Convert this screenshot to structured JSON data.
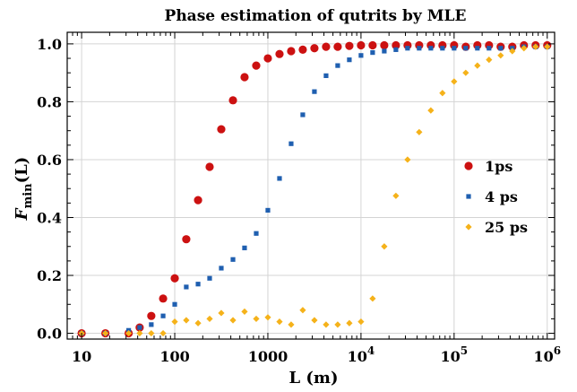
{
  "chart_data": {
    "type": "scatter",
    "title": "Phase estimation of qutrits by MLE",
    "xlabel": "L (m)",
    "ylabel_main": "F",
    "ylabel_sub": "min",
    "ylabel_tail": "(L)",
    "x_scale": "log",
    "xlim": [
      7,
      1200000
    ],
    "ylim": [
      -0.02,
      1.04
    ],
    "grid": true,
    "legend_position": "center-right",
    "x_ticks": [
      {
        "value": 10,
        "base": "10",
        "exp": ""
      },
      {
        "value": 100,
        "base": "100",
        "exp": ""
      },
      {
        "value": 1000,
        "base": "1000",
        "exp": ""
      },
      {
        "value": 10000,
        "base": "10",
        "exp": "4"
      },
      {
        "value": 100000,
        "base": "10",
        "exp": "5"
      },
      {
        "value": 1000000,
        "base": "10",
        "exp": "6"
      }
    ],
    "y_ticks": [
      {
        "value": 0.0,
        "label": "0.0"
      },
      {
        "value": 0.2,
        "label": "0.2"
      },
      {
        "value": 0.4,
        "label": "0.4"
      },
      {
        "value": 0.6,
        "label": "0.6"
      },
      {
        "value": 0.8,
        "label": "0.8"
      },
      {
        "value": 1.0,
        "label": "1.0"
      }
    ],
    "series": [
      {
        "name": "1ps",
        "color": "#cc1111",
        "marker": "circle",
        "x": [
          10,
          18,
          32,
          42,
          56,
          75,
          100,
          133,
          178,
          237,
          316,
          422,
          562,
          750,
          1000,
          1334,
          1778,
          2371,
          3162,
          4217,
          5623,
          7499,
          10000,
          13335,
          17783,
          23714,
          31623,
          42170,
          56234,
          74989,
          100000,
          133352,
          177828,
          237137,
          316228,
          421697,
          562341,
          749894,
          1000000
        ],
        "y": [
          0.0,
          0.0,
          0.0,
          0.02,
          0.06,
          0.12,
          0.19,
          0.325,
          0.46,
          0.575,
          0.705,
          0.805,
          0.885,
          0.925,
          0.95,
          0.965,
          0.975,
          0.98,
          0.985,
          0.99,
          0.99,
          0.993,
          0.995,
          0.995,
          0.995,
          0.995,
          0.995,
          0.995,
          0.995,
          0.995,
          0.995,
          0.99,
          0.995,
          0.995,
          0.99,
          0.99,
          0.995,
          0.995,
          0.995
        ]
      },
      {
        "name": "4 ps",
        "color": "#1f5fb0",
        "marker": "square",
        "x": [
          10,
          18,
          32,
          42,
          56,
          75,
          100,
          133,
          178,
          237,
          316,
          422,
          562,
          750,
          1000,
          1334,
          1778,
          2371,
          3162,
          4217,
          5623,
          7499,
          10000,
          13335,
          17783,
          23714,
          31623,
          42170,
          56234,
          74989,
          100000,
          133352,
          177828,
          237137,
          316228,
          421697,
          562341,
          749894,
          1000000
        ],
        "y": [
          0.0,
          0.0,
          0.01,
          0.02,
          0.03,
          0.06,
          0.1,
          0.16,
          0.17,
          0.19,
          0.225,
          0.255,
          0.295,
          0.345,
          0.425,
          0.535,
          0.655,
          0.755,
          0.835,
          0.89,
          0.925,
          0.945,
          0.96,
          0.97,
          0.975,
          0.98,
          0.985,
          0.985,
          0.985,
          0.985,
          0.985,
          0.985,
          0.985,
          0.985,
          0.985,
          0.985,
          0.99,
          0.99,
          0.99
        ]
      },
      {
        "name": "25 ps",
        "color": "#f5b21a",
        "marker": "diamond",
        "x": [
          10,
          18,
          32,
          42,
          56,
          75,
          100,
          133,
          178,
          237,
          316,
          422,
          562,
          750,
          1000,
          1334,
          1778,
          2371,
          3162,
          4217,
          5623,
          7499,
          10000,
          13335,
          17783,
          23714,
          31623,
          42170,
          56234,
          74989,
          100000,
          133352,
          177828,
          237137,
          316228,
          421697,
          562341,
          749894,
          1000000
        ],
        "y": [
          0.0,
          0.0,
          0.0,
          0.0,
          0.0,
          0.0,
          0.04,
          0.045,
          0.035,
          0.05,
          0.07,
          0.045,
          0.075,
          0.05,
          0.055,
          0.04,
          0.03,
          0.08,
          0.045,
          0.03,
          0.03,
          0.035,
          0.04,
          0.12,
          0.3,
          0.475,
          0.6,
          0.695,
          0.77,
          0.83,
          0.87,
          0.9,
          0.925,
          0.945,
          0.96,
          0.975,
          0.985,
          0.99,
          0.99
        ]
      }
    ]
  }
}
